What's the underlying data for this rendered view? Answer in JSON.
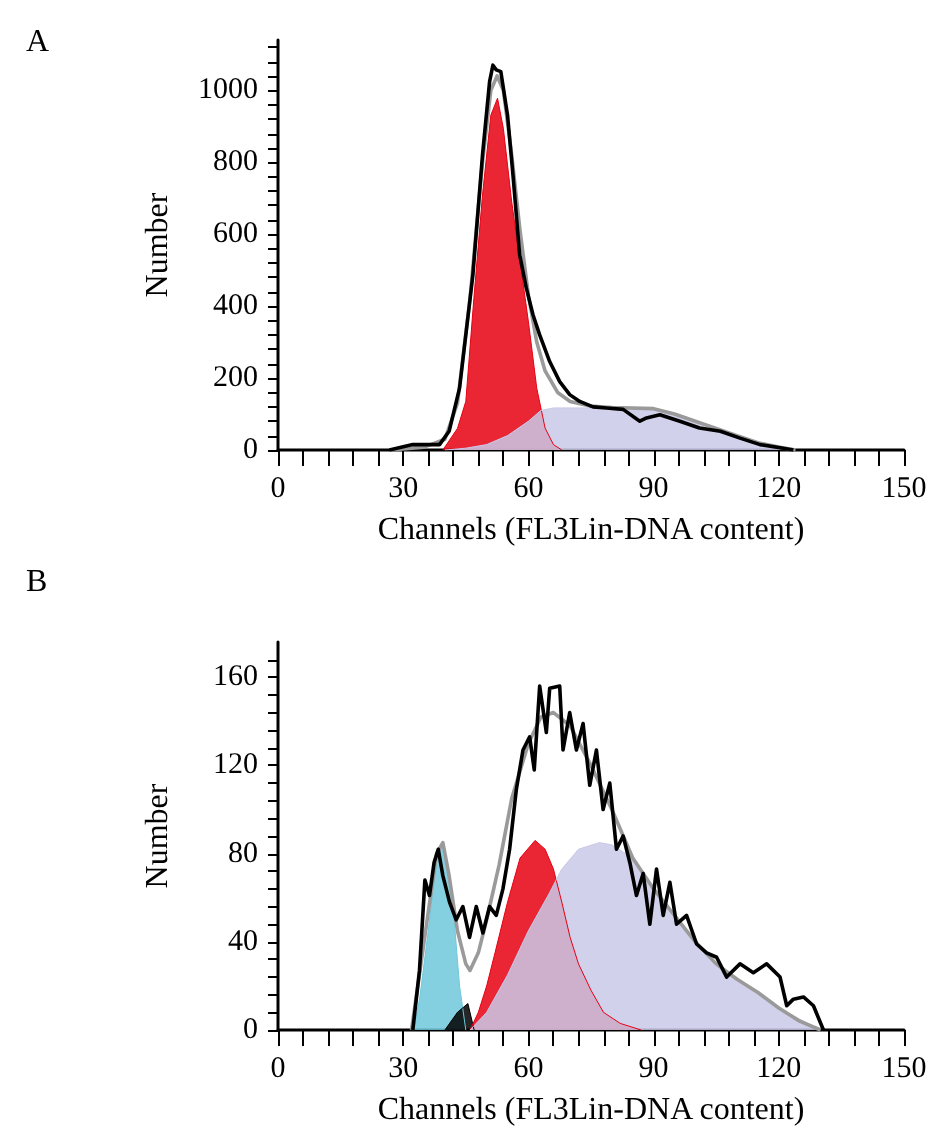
{
  "chart_data": [
    {
      "type": "area",
      "title": "A",
      "xlabel": "Channels (FL3Lin-DNA content)",
      "ylabel": "Number",
      "xlim": [
        0,
        150
      ],
      "ylim": [
        0,
        1140
      ],
      "xticks": [
        0,
        {
          "value": 6,
          "label": null
        },
        {
          "value": 12,
          "label": null
        },
        {
          "value": 18,
          "label": null
        },
        {
          "value": 24,
          "label": null
        },
        30,
        {
          "value": 36,
          "label": null
        },
        {
          "value": 42,
          "label": null
        },
        {
          "value": 48,
          "label": null
        },
        {
          "value": 54,
          "label": null
        },
        60,
        {
          "value": 66,
          "label": null
        },
        {
          "value": 72,
          "label": null
        },
        {
          "value": 78,
          "label": null
        },
        {
          "value": 84,
          "label": null
        },
        90,
        {
          "value": 96,
          "label": null
        },
        {
          "value": 102,
          "label": null
        },
        {
          "value": 108,
          "label": null
        },
        {
          "value": 114,
          "label": null
        },
        120,
        {
          "value": 126,
          "label": null
        },
        {
          "value": 132,
          "label": null
        },
        {
          "value": 138,
          "label": null
        },
        {
          "value": 144,
          "label": null
        },
        150
      ],
      "yticks": [
        0,
        {
          "value": 40,
          "label": null
        },
        {
          "value": 80,
          "label": null
        },
        {
          "value": 120,
          "label": null
        },
        {
          "value": 160,
          "label": null
        },
        200,
        {
          "value": 240,
          "label": null
        },
        {
          "value": 280,
          "label": null
        },
        {
          "value": 320,
          "label": null
        },
        {
          "value": 360,
          "label": null
        },
        400,
        {
          "value": 440,
          "label": null
        },
        {
          "value": 480,
          "label": null
        },
        {
          "value": 520,
          "label": null
        },
        {
          "value": 560,
          "label": null
        },
        600,
        {
          "value": 640,
          "label": null
        },
        {
          "value": 680,
          "label": null
        },
        {
          "value": 720,
          "label": null
        },
        {
          "value": 760,
          "label": null
        },
        800,
        {
          "value": 840,
          "label": null
        },
        {
          "value": 880,
          "label": null
        },
        {
          "value": 920,
          "label": null
        },
        {
          "value": 960,
          "label": null
        },
        1000,
        {
          "value": 1040,
          "label": null
        },
        {
          "value": 1080,
          "label": null
        },
        {
          "value": 1120,
          "label": null
        }
      ],
      "series": [
        {
          "color": "#e60012",
          "x": [
            39.5,
            43,
            45,
            47,
            49,
            51,
            52.6,
            54,
            56,
            58,
            60,
            62,
            64,
            66,
            68
          ],
          "values": [
            0,
            60,
            135,
            431,
            709,
            931,
            978,
            894,
            690,
            524,
            357,
            172,
            61,
            15,
            0
          ]
        },
        {
          "color": "#c9c9e8",
          "x": [
            40,
            45,
            50,
            55,
            60,
            63,
            66,
            80,
            90,
            95,
            100,
            105,
            110,
            115,
            120,
            123
          ],
          "values": [
            0,
            5,
            15,
            40,
            80,
            110,
            117,
            117,
            115,
            100,
            80,
            60,
            40,
            20,
            8,
            0
          ]
        },
        {
          "type": "line",
          "color": "#9a9a9a",
          "x": [
            27,
            35,
            40,
            43,
            46,
            49,
            51,
            52.5,
            54,
            56,
            58,
            60,
            62,
            64,
            67,
            70,
            75,
            80,
            90,
            95,
            100,
            105,
            110,
            115,
            120,
            124
          ],
          "values": [
            0,
            8,
            30,
            130,
            420,
            800,
            1000,
            1040,
            1000,
            820,
            610,
            430,
            300,
            220,
            160,
            135,
            122,
            118,
            115,
            100,
            80,
            60,
            40,
            20,
            8,
            0
          ]
        },
        {
          "type": "line",
          "color": "#000000",
          "x": [
            26.7,
            32.3,
            38.7,
            41,
            43.5,
            46.7,
            49,
            50.7,
            51.5,
            52.3,
            53.4,
            55,
            56.3,
            57.9,
            59.5,
            61.1,
            62.7,
            65.1,
            67.5,
            69.9,
            72.3,
            75.5,
            78.7,
            82.7,
            86.7,
            88.3,
            91.5,
            96.3,
            101,
            106,
            110.7,
            115.5,
            120.3,
            123.5
          ],
          "values": [
            0,
            15,
            15,
            52,
            172,
            487,
            820,
            1024,
            1070,
            1057,
            1052,
            931,
            765,
            543,
            450,
            376,
            320,
            246,
            190,
            154,
            135,
            120,
            117,
            113,
            80,
            89,
            98,
            80,
            61,
            52,
            33,
            15,
            6,
            0
          ]
        }
      ]
    },
    {
      "type": "area",
      "title": "B",
      "xlabel": "Channels (FL3Lin-DNA content)",
      "ylabel": "Number",
      "xlim": [
        0,
        150
      ],
      "ylim": [
        0,
        176
      ],
      "xticks": [
        0,
        {
          "value": 6,
          "label": null
        },
        {
          "value": 12,
          "label": null
        },
        {
          "value": 18,
          "label": null
        },
        {
          "value": 24,
          "label": null
        },
        30,
        {
          "value": 36,
          "label": null
        },
        {
          "value": 42,
          "label": null
        },
        {
          "value": 48,
          "label": null
        },
        {
          "value": 54,
          "label": null
        },
        60,
        {
          "value": 66,
          "label": null
        },
        {
          "value": 72,
          "label": null
        },
        {
          "value": 78,
          "label": null
        },
        {
          "value": 84,
          "label": null
        },
        90,
        {
          "value": 96,
          "label": null
        },
        {
          "value": 102,
          "label": null
        },
        {
          "value": 108,
          "label": null
        },
        {
          "value": 114,
          "label": null
        },
        120,
        {
          "value": 126,
          "label": null
        },
        {
          "value": 132,
          "label": null
        },
        {
          "value": 138,
          "label": null
        },
        {
          "value": 144,
          "label": null
        },
        150
      ],
      "yticks": [
        0,
        {
          "value": 8,
          "label": null
        },
        {
          "value": 16,
          "label": null
        },
        {
          "value": 24,
          "label": null
        },
        {
          "value": 32,
          "label": null
        },
        40,
        {
          "value": 48,
          "label": null
        },
        {
          "value": 56,
          "label": null
        },
        {
          "value": 64,
          "label": null
        },
        {
          "value": 72,
          "label": null
        },
        80,
        {
          "value": 88,
          "label": null
        },
        {
          "value": 96,
          "label": null
        },
        {
          "value": 104,
          "label": null
        },
        {
          "value": 112,
          "label": null
        },
        120,
        {
          "value": 128,
          "label": null
        },
        {
          "value": 136,
          "label": null
        },
        {
          "value": 144,
          "label": null
        },
        {
          "value": 152,
          "label": null
        },
        160,
        {
          "value": 168,
          "label": null
        }
      ],
      "series": [
        {
          "color": "#6ec8dc",
          "x": [
            32.5,
            34,
            36,
            38,
            39,
            40,
            42,
            43.5,
            45
          ],
          "values": [
            0,
            15,
            45,
            78,
            84,
            80,
            55,
            20,
            0
          ]
        },
        {
          "color": "#000000",
          "x": [
            40,
            43,
            45.5,
            47
          ],
          "values": [
            0,
            8,
            12,
            0
          ]
        },
        {
          "color": "#e60012",
          "x": [
            46,
            48,
            50,
            52,
            55,
            58,
            61.6,
            64,
            66,
            68,
            70,
            72,
            75,
            78,
            82,
            87
          ],
          "values": [
            0,
            8,
            20,
            35,
            58,
            78,
            86,
            82,
            73,
            58,
            42,
            30,
            18,
            8,
            3,
            0
          ]
        },
        {
          "color": "#c9c9e8",
          "x": [
            46,
            50,
            55,
            60,
            65,
            68,
            72,
            77,
            80,
            85,
            90,
            95,
            100,
            105,
            110,
            115,
            120,
            125,
            130
          ],
          "values": [
            0,
            8,
            25,
            45,
            62,
            73,
            82,
            85,
            84,
            78,
            64,
            52,
            40,
            30,
            23,
            17,
            10,
            5,
            0
          ]
        },
        {
          "type": "line",
          "color": "#9a9a9a",
          "x": [
            32,
            35,
            38,
            39.5,
            41,
            43,
            45,
            46,
            48,
            50,
            53,
            56,
            60,
            63,
            66,
            70,
            75,
            80,
            85,
            90,
            95,
            100,
            105,
            110,
            115,
            120,
            125,
            130
          ],
          "values": [
            0,
            40,
            80,
            85,
            70,
            45,
            30,
            27,
            35,
            50,
            75,
            105,
            130,
            142,
            144,
            138,
            120,
            100,
            78,
            64,
            52,
            40,
            30,
            23,
            17,
            10,
            4,
            0
          ]
        },
        {
          "type": "line",
          "color": "#000000",
          "x": [
            32.3,
            33.9,
            35.2,
            36.3,
            37.4,
            38.4,
            39.5,
            41.1,
            42.7,
            44.3,
            45.9,
            47.5,
            49.1,
            50.7,
            52.3,
            53.9,
            55.5,
            57.1,
            58.7,
            60.3,
            61.4,
            62.7,
            64.3,
            65.1,
            67.5,
            68.3,
            69.9,
            71.5,
            73.1,
            74.7,
            76.3,
            77.9,
            79.5,
            81.1,
            82.7,
            84.3,
            85.9,
            87.5,
            89.1,
            90.7,
            92.3,
            93.9,
            95.5,
            97.9,
            100.3,
            102.7,
            105.1,
            107.5,
            110.7,
            113.9,
            117.1,
            120.3,
            121.9,
            123.5,
            125.9,
            128.3,
            130.7
          ],
          "values": [
            0,
            27,
            68,
            61,
            76,
            82,
            70,
            58,
            50,
            56,
            42,
            56,
            44,
            56,
            52,
            64,
            82,
            109,
            127,
            133,
            118,
            156,
            135,
            155,
            156,
            127,
            144,
            127,
            139,
            111,
            127,
            100,
            112,
            82,
            88,
            76,
            61,
            71,
            48,
            73,
            52,
            67,
            48,
            52,
            39,
            35,
            33,
            24,
            30,
            26,
            30,
            24,
            11,
            14,
            15,
            11,
            0
          ]
        }
      ]
    }
  ]
}
